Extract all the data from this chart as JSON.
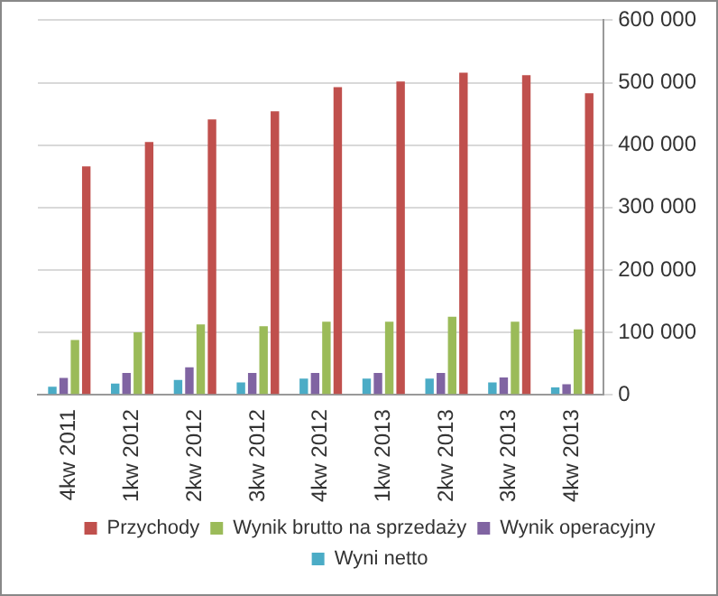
{
  "chart_data": {
    "type": "bar",
    "categories": [
      "4kw 2011",
      "1kw 2012",
      "2kw 2012",
      "3kw 2012",
      "4kw 2012",
      "1kw 2013",
      "2kw 2013",
      "3kw 2013",
      "4kw 2013"
    ],
    "series": [
      {
        "name": "Wyni netto",
        "color": "#4bacc6",
        "values": [
          13000,
          18000,
          24000,
          20000,
          26000,
          26000,
          26000,
          20000,
          12000
        ]
      },
      {
        "name": "Wynik operacyjny",
        "color": "#8064a2",
        "values": [
          27000,
          35000,
          44000,
          35000,
          35000,
          35000,
          35000,
          28000,
          17000
        ]
      },
      {
        "name": "Wynik brutto na sprzedaży",
        "color": "#9bbb59",
        "values": [
          88000,
          100000,
          113000,
          110000,
          117000,
          117000,
          125000,
          117000,
          105000
        ]
      },
      {
        "name": "Przychody",
        "color": "#c0504d",
        "values": [
          366000,
          405000,
          441000,
          454000,
          493000,
          502000,
          516000,
          512000,
          483000
        ]
      }
    ],
    "ylim": [
      0,
      600000
    ],
    "yticks": [
      {
        "value": 0,
        "label": "0"
      },
      {
        "value": 100000,
        "label": "100 000"
      },
      {
        "value": 200000,
        "label": "200 000"
      },
      {
        "value": 300000,
        "label": "300 000"
      },
      {
        "value": 400000,
        "label": "400 000"
      },
      {
        "value": 500000,
        "label": "500 000"
      },
      {
        "value": 600000,
        "label": "600 000"
      }
    ],
    "grid": "y",
    "legend": "bottom"
  }
}
